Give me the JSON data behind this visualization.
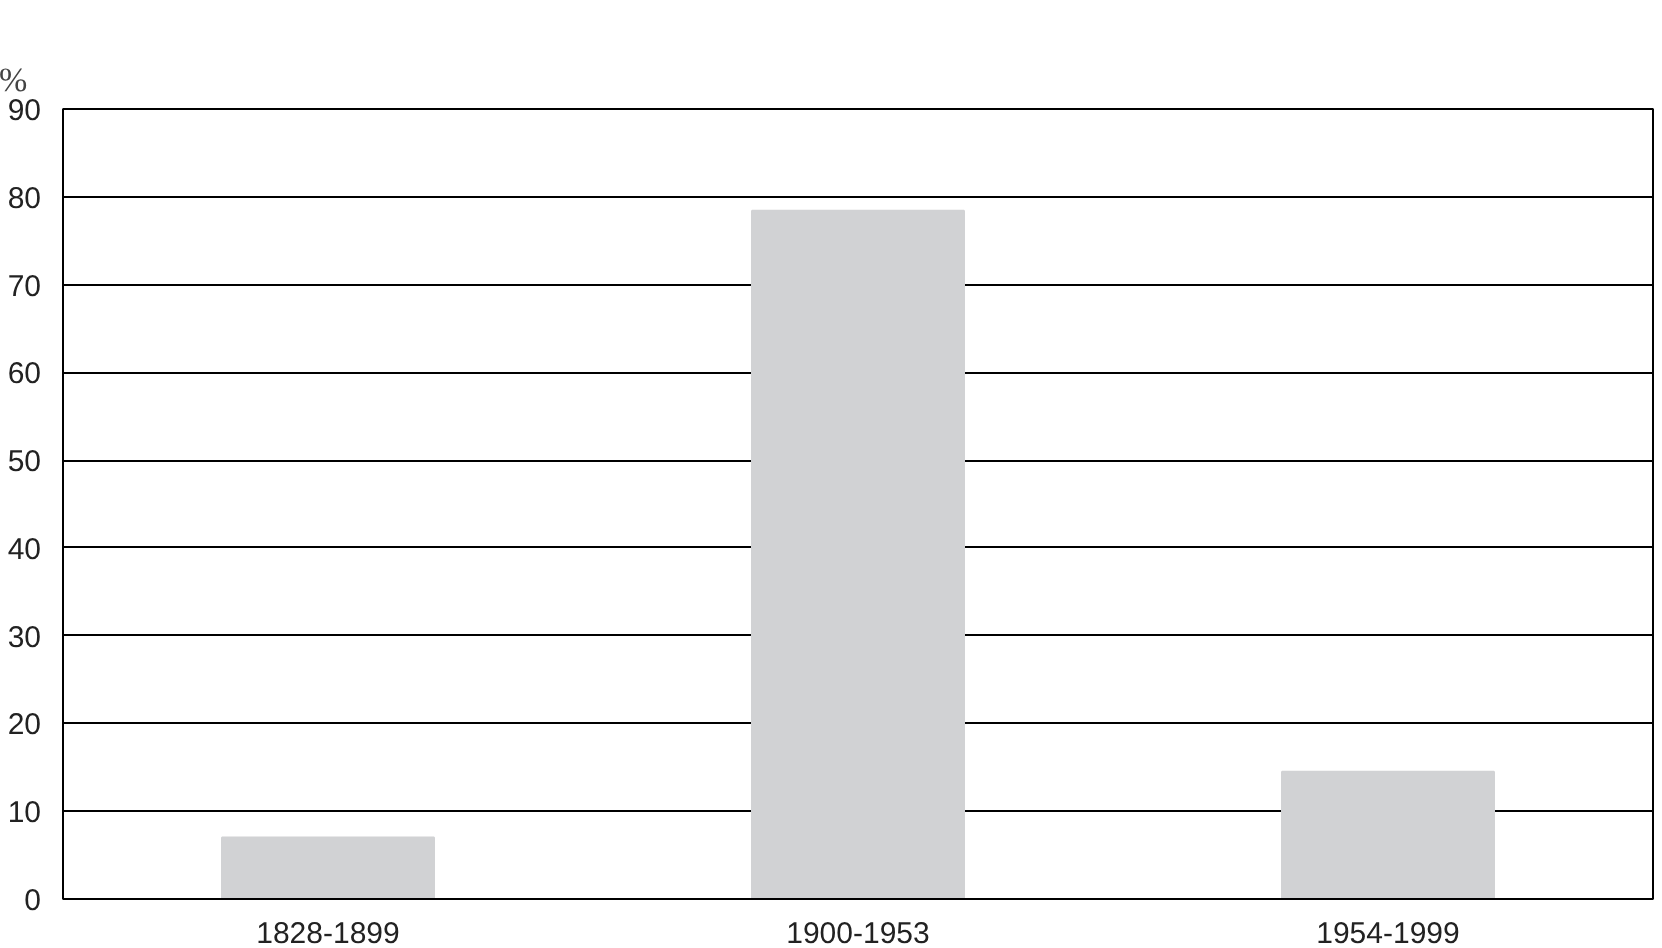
{
  "chart_data": {
    "type": "bar",
    "ylabel": "%",
    "categories": [
      "1828-1899",
      "1900-1953",
      "1954-1999"
    ],
    "values": [
      7,
      78.4,
      14.5
    ],
    "color": "#d1d2d4",
    "ylim": [
      0,
      90
    ],
    "yticks": [
      0,
      10,
      20,
      30,
      40,
      50,
      60,
      70,
      80,
      90
    ],
    "grid": "y"
  }
}
